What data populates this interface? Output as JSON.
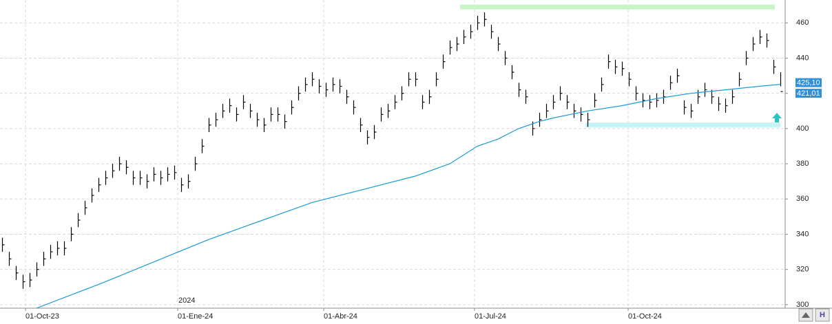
{
  "chart_data": {
    "type": "ohlc",
    "high": [
      338,
      330,
      322,
      317,
      318,
      324,
      330,
      334,
      336,
      336,
      344,
      352,
      359,
      366,
      372,
      376,
      380,
      384,
      382,
      376,
      376,
      374,
      378,
      376,
      378,
      379,
      372,
      374,
      384,
      394,
      406,
      409,
      414,
      417,
      412,
      419,
      414,
      409,
      406,
      412,
      412,
      408,
      416,
      424,
      429,
      432,
      428,
      426,
      429,
      428,
      422,
      416,
      406,
      399,
      402,
      412,
      414,
      419,
      424,
      432,
      432,
      419,
      422,
      432,
      442,
      450,
      452,
      456,
      459,
      464,
      466,
      459,
      452,
      444,
      436,
      426,
      422,
      404,
      409,
      414,
      419,
      424,
      419,
      414,
      412,
      409,
      420,
      429,
      442,
      439,
      438,
      432,
      424,
      420,
      419,
      420,
      422,
      430,
      434,
      416,
      414,
      422,
      426,
      422,
      418,
      417,
      422,
      432,
      444,
      452,
      456,
      454,
      439,
      432
    ],
    "low": [
      330,
      322,
      314,
      309,
      310,
      316,
      322,
      326,
      328,
      328,
      336,
      344,
      351,
      358,
      364,
      368,
      372,
      376,
      374,
      368,
      368,
      366,
      370,
      368,
      370,
      371,
      364,
      366,
      376,
      386,
      398,
      401,
      406,
      409,
      404,
      411,
      406,
      401,
      398,
      404,
      404,
      400,
      408,
      416,
      421,
      424,
      420,
      418,
      421,
      420,
      414,
      408,
      398,
      391,
      394,
      404,
      406,
      411,
      416,
      424,
      424,
      411,
      414,
      424,
      434,
      442,
      444,
      448,
      451,
      456,
      458,
      451,
      444,
      436,
      428,
      418,
      414,
      396,
      401,
      406,
      411,
      416,
      411,
      406,
      404,
      401,
      412,
      421,
      434,
      431,
      430,
      424,
      416,
      412,
      411,
      412,
      414,
      422,
      426,
      408,
      406,
      414,
      418,
      414,
      410,
      409,
      414,
      424,
      436,
      444,
      448,
      446,
      431,
      424
    ],
    "close": [
      334,
      326,
      318,
      313,
      314,
      320,
      326,
      330,
      332,
      332,
      340,
      348,
      355,
      362,
      368,
      372,
      376,
      380,
      378,
      372,
      372,
      370,
      374,
      372,
      374,
      375,
      368,
      370,
      380,
      390,
      402,
      405,
      410,
      413,
      408,
      415,
      410,
      405,
      402,
      408,
      408,
      404,
      412,
      420,
      425,
      428,
      424,
      422,
      425,
      424,
      418,
      412,
      402,
      395,
      398,
      408,
      410,
      415,
      420,
      428,
      428,
      415,
      418,
      428,
      438,
      446,
      448,
      452,
      455,
      460,
      462,
      455,
      448,
      440,
      432,
      422,
      418,
      400,
      405,
      410,
      415,
      420,
      415,
      410,
      408,
      405,
      416,
      425,
      438,
      435,
      434,
      428,
      420,
      416,
      415,
      416,
      418,
      426,
      430,
      412,
      410,
      418,
      422,
      418,
      414,
      413,
      418,
      428,
      440,
      448,
      452,
      450,
      435,
      421.01
    ],
    "ma": {
      "x": [
        5,
        10,
        15,
        20,
        25,
        30,
        35,
        40,
        45,
        50,
        55,
        60,
        65,
        69,
        72,
        75,
        78,
        80,
        85,
        90,
        95,
        100,
        105,
        110,
        113
      ],
      "values": [
        298,
        305.5,
        313,
        321,
        329,
        337,
        344,
        351,
        358,
        363,
        368,
        373,
        380,
        390,
        394,
        400,
        404,
        406,
        410,
        413,
        417,
        420,
        422,
        424,
        425.1
      ],
      "color": "#1a9ad6"
    },
    "levels": [
      {
        "from": 66.5,
        "to": 112.2,
        "value": 469,
        "color": "#c8f5c8"
      },
      {
        "from": 84.7,
        "to": 113,
        "value": 402,
        "color": "#c4f4f6"
      }
    ],
    "last_labels": [
      {
        "value": 425.1,
        "label": "425,10"
      },
      {
        "value": 421.01,
        "label": "421,01"
      }
    ],
    "year_label": "2024",
    "xlim": [
      -0.3,
      113.7
    ],
    "xticks": [
      {
        "value": 3.4,
        "label": "01-Oct-23"
      },
      {
        "value": 25.5,
        "label": "01-Ene-24"
      },
      {
        "value": 46.7,
        "label": "01-Abr-24"
      },
      {
        "value": 68.6,
        "label": "01-Jul-24"
      },
      {
        "value": 90.9,
        "label": "01-Oct-24"
      }
    ],
    "ylim": [
      298,
      473
    ],
    "yticks": [
      300,
      320,
      340,
      360,
      380,
      400,
      420,
      440,
      460
    ],
    "grid": true
  }
}
